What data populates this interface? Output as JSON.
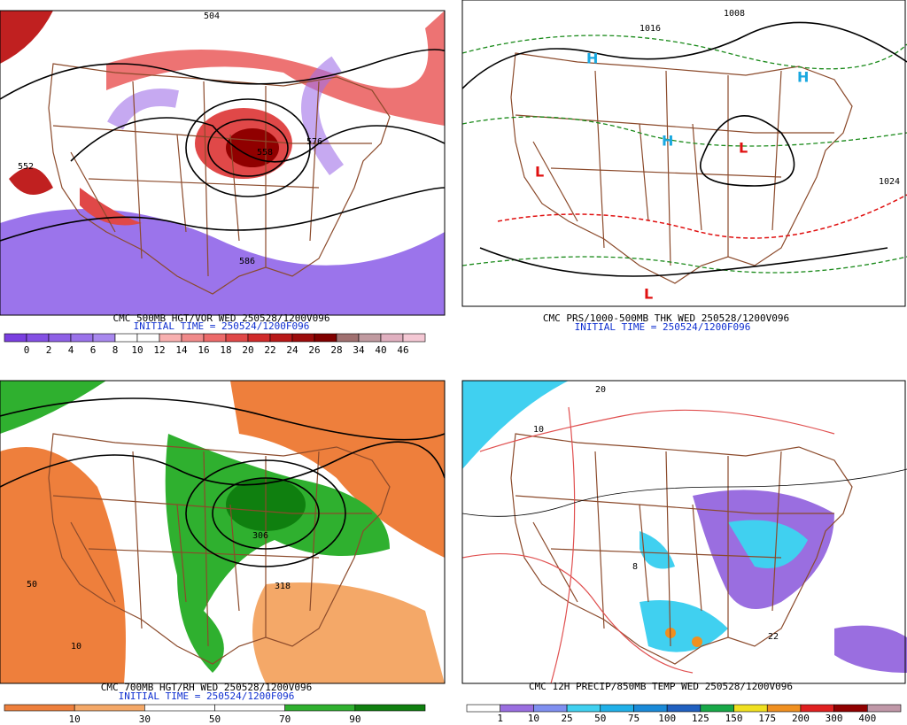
{
  "panels": [
    {
      "title": "CMC 500MB HGT/VOR WED 250528/1200V096",
      "init_time": "INITIAL TIME = 250524/1200F096",
      "contour_labels": [
        "504",
        "552",
        "576",
        "586",
        "558"
      ],
      "colorbar": {
        "labels": [
          0,
          2,
          4,
          6,
          8,
          10,
          12,
          14,
          16,
          18,
          20,
          22,
          24,
          26,
          28,
          34,
          40,
          46
        ],
        "colors": [
          "#7a3fe0",
          "#8450e4",
          "#8e60e6",
          "#9a72ea",
          "#a888ee",
          "#ffffff",
          "#ffffff",
          "#f8b0b0",
          "#f08a8a",
          "#ec6a6a",
          "#e04848",
          "#d02a2a",
          "#b81818",
          "#9c0c0c",
          "#800000",
          "#a07070",
          "#c09aa0",
          "#e0b0c0",
          "#f4c8d4"
        ]
      }
    },
    {
      "title": "CMC PRS/1000-500MB THK WED 250528/1200V096",
      "init_time": "INITIAL TIME = 250524/1200F096",
      "contour_labels": [
        "1008",
        "1016",
        "1024",
        "H",
        "L"
      ]
    },
    {
      "title": "CMC 700MB HGT/RH WED 250528/1200V096",
      "init_time": "INITIAL TIME = 250524/1200F096",
      "contour_labels": [
        "10",
        "50",
        "306",
        "318"
      ],
      "colorbar": {
        "labels": [
          10,
          30,
          50,
          70,
          90
        ],
        "colors": [
          "#ee7f3c",
          "#f4a868",
          "#ffffff",
          "#ffffff",
          "#2fb02f",
          "#0f7f0f"
        ]
      }
    },
    {
      "title": "CMC 12H PRECIP/850MB TEMP WED 250528/1200V096",
      "contour_labels": [
        "20",
        "10",
        "8",
        "22"
      ],
      "colorbar": {
        "labels": [
          1,
          10,
          25,
          50,
          75,
          100,
          125,
          150,
          175,
          200,
          300,
          400
        ],
        "colors": [
          "#ffffff",
          "#9a6ee0",
          "#7f8ff0",
          "#40d0f0",
          "#20b0e8",
          "#1a8ad8",
          "#2060c0",
          "#18a848",
          "#f0e020",
          "#f09020",
          "#e02020",
          "#900000",
          "#c098a8"
        ]
      }
    }
  ]
}
